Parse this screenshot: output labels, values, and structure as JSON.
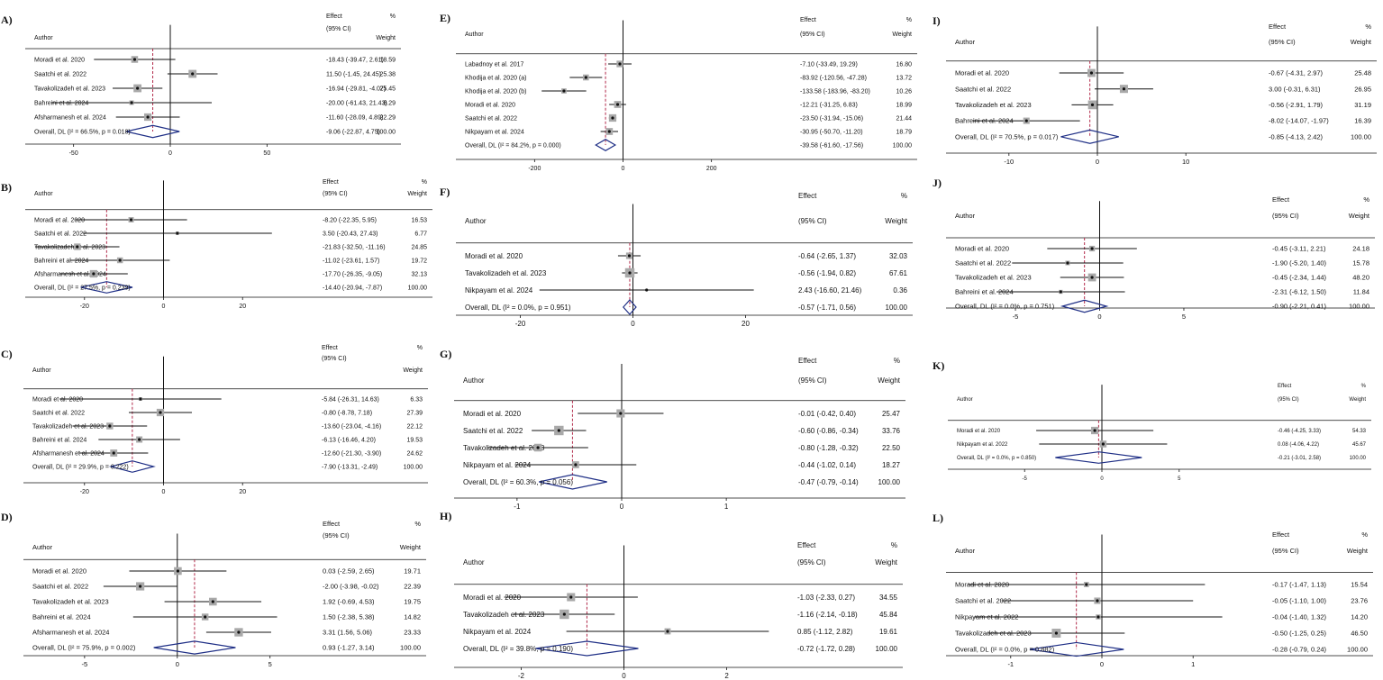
{
  "chart_data": [
    {
      "type": "forest",
      "label": "A)",
      "header": {
        "author": "Author",
        "effect": "Effect",
        "ci": "(95% CI)",
        "pct": "%",
        "weight": "Weight"
      },
      "xlim": [
        -75,
        75
      ],
      "ticks": [
        -50,
        0,
        50
      ],
      "studies": [
        {
          "name": "Moradi et al. 2020",
          "est": -18.43,
          "lo": -39.47,
          "hi": 2.61,
          "text": "-18.43 (-39.47, 2.61)",
          "weight": 18.59
        },
        {
          "name": "Saatchi et al. 2022",
          "est": 11.5,
          "lo": -1.45,
          "hi": 24.45,
          "text": "11.50 (-1.45, 24.45)",
          "weight": 25.38
        },
        {
          "name": "Tavakolizadeh et al. 2023",
          "est": -16.94,
          "lo": -29.81,
          "hi": -4.07,
          "text": "-16.94 (-29.81, -4.07)",
          "weight": 25.45
        },
        {
          "name": "Bahreini et al. 2024",
          "est": -20.0,
          "lo": -61.43,
          "hi": 21.43,
          "text": "-20.00 (-61.43, 21.43)",
          "weight": 8.29
        },
        {
          "name": "Afsharmanesh et al. 2024",
          "est": -11.6,
          "lo": -28.09,
          "hi": 4.89,
          "text": "-11.60 (-28.09, 4.89)",
          "weight": 22.29
        }
      ],
      "overall": {
        "name": "Overall, DL (I² = 66.5%, p = 0.018)",
        "est": -9.06,
        "lo": -22.87,
        "hi": 4.75,
        "text": "-9.06 (-22.87, 4.75)",
        "weight": "100.00"
      }
    },
    {
      "type": "forest",
      "label": "B)",
      "header": {
        "author": "Author",
        "effect": "Effect",
        "ci": "(95% CI)",
        "pct": "%",
        "weight": "Weight"
      },
      "xlim": [
        -35,
        35
      ],
      "ticks": [
        -20,
        0,
        20
      ],
      "studies": [
        {
          "name": "Moradi et al. 2020",
          "est": -8.2,
          "lo": -22.35,
          "hi": 5.95,
          "text": "-8.20 (-22.35, 5.95)",
          "weight": 16.53
        },
        {
          "name": "Saatchi et al. 2022",
          "est": 3.5,
          "lo": -20.43,
          "hi": 27.43,
          "text": "3.50 (-20.43, 27.43)",
          "weight": 6.77
        },
        {
          "name": "Tavakolizadeh et al. 2023",
          "est": -21.83,
          "lo": -32.5,
          "hi": -11.16,
          "text": "-21.83 (-32.50, -11.16)",
          "weight": 24.85
        },
        {
          "name": "Bahreini et al. 2024",
          "est": -11.02,
          "lo": -23.61,
          "hi": 1.57,
          "text": "-11.02 (-23.61, 1.57)",
          "weight": 19.72
        },
        {
          "name": "Afsharmanesh et al. 2024",
          "est": -17.7,
          "lo": -26.35,
          "hi": -9.05,
          "text": "-17.70 (-26.35, -9.05)",
          "weight": 32.13
        }
      ],
      "overall": {
        "name": "Overall, DL (I² = 27.5%, p = 0.239)",
        "est": -14.4,
        "lo": -20.94,
        "hi": -7.87,
        "text": "-14.40 (-20.94, -7.87)",
        "weight": "100.00"
      }
    },
    {
      "type": "forest",
      "label": "C)",
      "header": {
        "author": "Author",
        "effect": "Effect",
        "ci": "(95% CI)",
        "pct": "%",
        "weight": "Weight"
      },
      "xlim": [
        -35,
        35
      ],
      "ticks": [
        -20,
        0,
        20
      ],
      "studies": [
        {
          "name": "Moradi et al. 2020",
          "est": -5.84,
          "lo": -26.31,
          "hi": 14.63,
          "text": "-5.84 (-26.31, 14.63)",
          "weight": 6.33
        },
        {
          "name": "Saatchi et al. 2022",
          "est": -0.8,
          "lo": -8.78,
          "hi": 7.18,
          "text": "-0.80 (-8.78, 7.18)",
          "weight": 27.39
        },
        {
          "name": "Tavakolizadeh et al. 2023",
          "est": -13.6,
          "lo": -23.04,
          "hi": -4.16,
          "text": "-13.60 (-23.04, -4.16)",
          "weight": 22.12
        },
        {
          "name": "Bahreini et al. 2024",
          "est": -6.13,
          "lo": -16.46,
          "hi": 4.2,
          "text": "-6.13 (-16.46, 4.20)",
          "weight": 19.53
        },
        {
          "name": "Afsharmanesh et al. 2024",
          "est": -12.6,
          "lo": -21.3,
          "hi": -3.9,
          "text": "-12.60 (-21.30, -3.90)",
          "weight": 24.62
        }
      ],
      "overall": {
        "name": "Overall, DL (I² = 29.9%, p = 0.222)",
        "est": -7.9,
        "lo": -13.31,
        "hi": -2.49,
        "text": "-7.90 (-13.31, -2.49)",
        "weight": "100.00"
      }
    },
    {
      "type": "forest",
      "label": "D)",
      "header": {
        "author": "Author",
        "effect": "Effect",
        "ci": "(95% CI)",
        "pct": "%",
        "weight": "Weight"
      },
      "xlim": [
        -8.2,
        7.2
      ],
      "ticks": [
        -5,
        0,
        5
      ],
      "studies": [
        {
          "name": "Moradi et al. 2020",
          "est": 0.03,
          "lo": -2.59,
          "hi": 2.65,
          "text": "0.03 (-2.59, 2.65)",
          "weight": 19.71
        },
        {
          "name": "Saatchi et al. 2022",
          "est": -2.0,
          "lo": -3.98,
          "hi": -0.02,
          "text": "-2.00 (-3.98, -0.02)",
          "weight": 22.39
        },
        {
          "name": "Tavakolizadeh et al. 2023",
          "est": 1.92,
          "lo": -0.69,
          "hi": 4.53,
          "text": "1.92 (-0.69, 4.53)",
          "weight": 19.75
        },
        {
          "name": "Bahreini et al. 2024",
          "est": 1.5,
          "lo": -2.38,
          "hi": 5.38,
          "text": "1.50 (-2.38, 5.38)",
          "weight": 14.82
        },
        {
          "name": "Afsharmanesh et al. 2024",
          "est": 3.31,
          "lo": 1.56,
          "hi": 5.06,
          "text": "3.31 (1.56, 5.06)",
          "weight": 23.33
        }
      ],
      "overall": {
        "name": "Overall, DL (I² = 75.9%, p = 0.002)",
        "est": 0.93,
        "lo": -1.27,
        "hi": 3.14,
        "text": "0.93 (-1.27, 3.14)",
        "weight": "100.00"
      }
    },
    {
      "type": "forest",
      "label": "E)",
      "header": {
        "author": "Author",
        "effect": "Effect",
        "ci": "(95% CI)",
        "pct": "%",
        "weight": "Weight"
      },
      "xlim": [
        -380,
        380
      ],
      "ticks": [
        -200,
        0,
        200
      ],
      "studies": [
        {
          "name": "Labadnoy et al. 2017",
          "est": -7.1,
          "lo": -33.49,
          "hi": 19.29,
          "text": "-7.10 (-33.49, 19.29)",
          "weight": 16.8
        },
        {
          "name": "Khodija et al. 2020 (a)",
          "est": -83.92,
          "lo": -120.56,
          "hi": -47.28,
          "text": "-83.92 (-120.56, -47.28)",
          "weight": 13.72
        },
        {
          "name": "Khodija et al. 2020 (b)",
          "est": -133.58,
          "lo": -183.96,
          "hi": -83.2,
          "text": "-133.58 (-183.96, -83.20)",
          "weight": 10.26
        },
        {
          "name": "Moradi et al. 2020",
          "est": -12.21,
          "lo": -31.25,
          "hi": 6.83,
          "text": "-12.21 (-31.25, 6.83)",
          "weight": 18.99
        },
        {
          "name": "Saatchi et al. 2022",
          "est": -23.5,
          "lo": -31.94,
          "hi": -15.06,
          "text": "-23.50 (-31.94, -15.06)",
          "weight": 21.44
        },
        {
          "name": "Nikpayam et al. 2024",
          "est": -30.95,
          "lo": -50.7,
          "hi": -11.2,
          "text": "-30.95 (-50.70, -11.20)",
          "weight": 18.79
        }
      ],
      "overall": {
        "name": "Overall, DL (I² = 84.2%, p = 0.000)",
        "est": -39.58,
        "lo": -61.6,
        "hi": -17.56,
        "text": "-39.58 (-61.60, -17.56)",
        "weight": "100.00"
      }
    },
    {
      "type": "forest",
      "label": "F)",
      "header": {
        "author": "Author",
        "effect": "Effect",
        "ci": "(95% CI)",
        "pct": "%",
        "weight": "Weight"
      },
      "xlim": [
        -30,
        30
      ],
      "ticks": [
        -20,
        0,
        20
      ],
      "studies": [
        {
          "name": "Moradi et al. 2020",
          "est": -0.64,
          "lo": -2.65,
          "hi": 1.37,
          "text": "-0.64 (-2.65, 1.37)",
          "weight": 32.03
        },
        {
          "name": "Tavakolizadeh et al. 2023",
          "est": -0.56,
          "lo": -1.94,
          "hi": 0.82,
          "text": "-0.56 (-1.94, 0.82)",
          "weight": 67.61
        },
        {
          "name": "Nikpayam et al. 2024",
          "est": 2.43,
          "lo": -16.6,
          "hi": 21.46,
          "text": "2.43 (-16.60, 21.46)",
          "weight": 0.36
        }
      ],
      "overall": {
        "name": "Overall, DL (I² = 0.0%, p = 0.951)",
        "est": -0.57,
        "lo": -1.71,
        "hi": 0.56,
        "text": "-0.57 (-1.71, 0.56)",
        "weight": "100.00"
      }
    },
    {
      "type": "forest",
      "label": "G)",
      "header": {
        "author": "Author",
        "effect": "Effect",
        "ci": "(95% CI)",
        "pct": "%",
        "weight": "Weight"
      },
      "xlim": [
        -1.55,
        1.55
      ],
      "ticks": [
        -1,
        0,
        1
      ],
      "studies": [
        {
          "name": "Moradi et al. 2020",
          "est": -0.01,
          "lo": -0.42,
          "hi": 0.4,
          "text": "-0.01 (-0.42, 0.40)",
          "weight": 25.47
        },
        {
          "name": "Saatchi et al. 2022",
          "est": -0.6,
          "lo": -0.86,
          "hi": -0.34,
          "text": "-0.60 (-0.86, -0.34)",
          "weight": 33.76
        },
        {
          "name": "Tavakolizadeh et al. 2023",
          "est": -0.8,
          "lo": -1.28,
          "hi": -0.32,
          "text": "-0.80 (-1.28, -0.32)",
          "weight": 22.5
        },
        {
          "name": "Nikpayam et al. 2024",
          "est": -0.44,
          "lo": -1.02,
          "hi": 0.14,
          "text": "-0.44 (-1.02, 0.14)",
          "weight": 18.27
        }
      ],
      "overall": {
        "name": "Overall, DL (I² = 60.3%, p = 0.056)",
        "est": -0.47,
        "lo": -0.79,
        "hi": -0.14,
        "text": "-0.47 (-0.79, -0.14)",
        "weight": "100.00"
      }
    },
    {
      "type": "forest",
      "label": "H)",
      "header": {
        "author": "Author",
        "effect": "Effect",
        "ci": "(95% CI)",
        "pct": "%",
        "weight": "Weight"
      },
      "xlim": [
        -3.2,
        3.2
      ],
      "ticks": [
        -2,
        0,
        2
      ],
      "studies": [
        {
          "name": "Moradi et al. 2020",
          "est": -1.03,
          "lo": -2.33,
          "hi": 0.27,
          "text": "-1.03 (-2.33, 0.27)",
          "weight": 34.55
        },
        {
          "name": "Tavakolizadeh et al. 2023",
          "est": -1.16,
          "lo": -2.14,
          "hi": -0.18,
          "text": "-1.16 (-2.14, -0.18)",
          "weight": 45.84
        },
        {
          "name": "Nikpayam et al. 2024",
          "est": 0.85,
          "lo": -1.12,
          "hi": 2.82,
          "text": "0.85 (-1.12, 2.82)",
          "weight": 19.61
        }
      ],
      "overall": {
        "name": "Overall, DL (I² = 39.8%, p = 0.190)",
        "est": -0.72,
        "lo": -1.72,
        "hi": 0.28,
        "text": "-0.72 (-1.72, 0.28)",
        "weight": "100.00"
      }
    },
    {
      "type": "forest",
      "label": "I)",
      "header": {
        "author": "Author",
        "effect": "Effect",
        "ci": "(95% CI)",
        "pct": "%",
        "weight": "Weight"
      },
      "xlim": [
        -16.5,
        16.5
      ],
      "ticks": [
        -10,
        0,
        10
      ],
      "studies": [
        {
          "name": "Moradi et al. 2020",
          "est": -0.67,
          "lo": -4.31,
          "hi": 2.97,
          "text": "-0.67 (-4.31, 2.97)",
          "weight": 25.48
        },
        {
          "name": "Saatchi et al. 2022",
          "est": 3.0,
          "lo": -0.31,
          "hi": 6.31,
          "text": "3.00 (-0.31, 6.31)",
          "weight": 26.95
        },
        {
          "name": "Tavakolizadeh et al. 2023",
          "est": -0.56,
          "lo": -2.91,
          "hi": 1.79,
          "text": "-0.56 (-2.91, 1.79)",
          "weight": 31.19
        },
        {
          "name": "Bahreini et al. 2024",
          "est": -8.02,
          "lo": -14.07,
          "hi": -1.97,
          "text": "-8.02 (-14.07, -1.97)",
          "weight": 16.39
        }
      ],
      "overall": {
        "name": "Overall, DL (I² = 70.5%, p = 0.017)",
        "est": -0.85,
        "lo": -4.13,
        "hi": 2.42,
        "text": "-0.85 (-4.13, 2.42)",
        "weight": "100.00"
      }
    },
    {
      "type": "forest",
      "label": "J)",
      "header": {
        "author": "Author",
        "effect": "Effect",
        "ci": "(95% CI)",
        "pct": "%",
        "weight": "Weight"
      },
      "xlim": [
        -8.8,
        8.8
      ],
      "ticks": [
        -5,
        0,
        5
      ],
      "studies": [
        {
          "name": "Moradi et al. 2020",
          "est": -0.45,
          "lo": -3.11,
          "hi": 2.21,
          "text": "-0.45 (-3.11, 2.21)",
          "weight": 24.18
        },
        {
          "name": "Saatchi et al. 2022",
          "est": -1.9,
          "lo": -5.2,
          "hi": 1.4,
          "text": "-1.90 (-5.20, 1.40)",
          "weight": 15.78
        },
        {
          "name": "Tavakolizadeh et al. 2023",
          "est": -0.45,
          "lo": -2.34,
          "hi": 1.44,
          "text": "-0.45 (-2.34, 1.44)",
          "weight": 48.2
        },
        {
          "name": "Bahreini et al. 2024",
          "est": -2.31,
          "lo": -6.12,
          "hi": 1.5,
          "text": "-2.31 (-6.12, 1.50)",
          "weight": 11.84
        }
      ],
      "overall": {
        "name": "Overall, DL (I² = 0.0%, p = 0.751)",
        "est": -0.9,
        "lo": -2.21,
        "hi": 0.41,
        "text": "-0.90 (-2.21, 0.41)",
        "weight": "100.00"
      }
    },
    {
      "type": "forest",
      "label": "K)",
      "header": {
        "author": "Author",
        "effect": "Effect",
        "ci": "(95% CI)",
        "pct": "%",
        "weight": "Weight"
      },
      "xlim": [
        -9.5,
        9.5
      ],
      "ticks": [
        -5,
        0,
        5
      ],
      "studies": [
        {
          "name": "Moradi et al. 2020",
          "est": -0.46,
          "lo": -4.25,
          "hi": 3.33,
          "text": "-0.46 (-4.25, 3.33)",
          "weight": 54.33
        },
        {
          "name": "Nikpayam et al. 2022",
          "est": 0.08,
          "lo": -4.06,
          "hi": 4.22,
          "text": "0.08 (-4.06, 4.22)",
          "weight": 45.67
        }
      ],
      "overall": {
        "name": "Overall, DL (I² = 0.0%, p = 0.850)",
        "est": -0.21,
        "lo": -3.01,
        "hi": 2.58,
        "text": "-0.21 (-3.01, 2.58)",
        "weight": "100.00"
      }
    },
    {
      "type": "forest",
      "label": "L)",
      "header": {
        "author": "Author",
        "effect": "Effect",
        "ci": "(95% CI)",
        "pct": "%",
        "weight": "Weight"
      },
      "xlim": [
        -1.65,
        1.65
      ],
      "ticks": [
        -1,
        0,
        1
      ],
      "studies": [
        {
          "name": "Moradi et al. 2020",
          "est": -0.17,
          "lo": -1.47,
          "hi": 1.13,
          "text": "-0.17 (-1.47, 1.13)",
          "weight": 15.54
        },
        {
          "name": "Saatchi et al. 2022",
          "est": -0.05,
          "lo": -1.1,
          "hi": 1.0,
          "text": "-0.05 (-1.10, 1.00)",
          "weight": 23.76
        },
        {
          "name": "Nikpayam et al. 2022",
          "est": -0.04,
          "lo": -1.4,
          "hi": 1.32,
          "text": "-0.04 (-1.40, 1.32)",
          "weight": 14.2
        },
        {
          "name": "Tavakolizadeh et al. 2023",
          "est": -0.5,
          "lo": -1.25,
          "hi": 0.25,
          "text": "-0.50 (-1.25, 0.25)",
          "weight": 46.5
        }
      ],
      "overall": {
        "name": "Overall, DL (I² = 0.0%, p = 0.882)",
        "est": -0.28,
        "lo": -0.79,
        "hi": 0.24,
        "text": "-0.28 (-0.79, 0.24)",
        "weight": "100.00"
      }
    }
  ],
  "colors": {
    "diamond": "#1f2f86",
    "refline": "#b22a4a",
    "box": "#a9a9a9",
    "line": "#111111"
  }
}
